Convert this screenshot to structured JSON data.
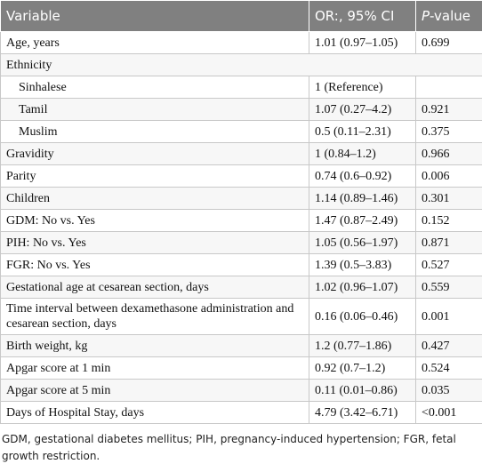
{
  "table": {
    "header": [
      "Variable",
      "OR:, 95% CI",
      "P-value"
    ],
    "rows": [
      [
        "Age, years",
        "1.01 (0.97–1.05)",
        "0.699"
      ],
      [
        "Ethnicity"
      ],
      [
        "Sinhalese",
        "1 (Reference)",
        null
      ],
      [
        "Tamil",
        "1.07 (0.27–4.2)",
        "0.921"
      ],
      [
        "Muslim",
        "0.5 (0.11–2.31)",
        "0.375"
      ],
      [
        "Gravidity",
        "1 (0.84–1.2)",
        "0.966"
      ],
      [
        "Parity",
        "0.74 (0.6–0.92)",
        "0.006"
      ],
      [
        "Children",
        "1.14 (0.89–1.46)",
        "0.301"
      ],
      [
        "GDM: No vs. Yes",
        "1.47 (0.87–2.49)",
        "0.152"
      ],
      [
        "PIH: No vs. Yes",
        "1.05 (0.56–1.97)",
        "0.871"
      ],
      [
        "FGR: No vs. Yes",
        "1.39 (0.5–3.83)",
        "0.527"
      ],
      [
        "Gestational age at cesarean section, days",
        "1.02 (0.96–1.07)",
        "0.559"
      ],
      [
        "Time interval between dexamethasone administration and cesarean section, days",
        "0.16 (0.06–0.46)",
        "0.001"
      ],
      [
        "Birth weight, kg",
        "1.2 (0.77–1.86)",
        "0.427"
      ],
      [
        "Apgar score at 1 min",
        "0.92 (0.7–1.2)",
        "0.524"
      ],
      [
        "Apgar score at 5 min",
        "0.11 (0.01–0.86)",
        "0.035"
      ],
      [
        "Days of Hospital Stay, days",
        "4.79 (3.42–6.71)",
        "<0.001"
      ]
    ]
  },
  "footnote": "GDM, gestational diabetes mellitus; PIH, pregnancy-induced hypertension; FGR, fetal growth restriction."
}
